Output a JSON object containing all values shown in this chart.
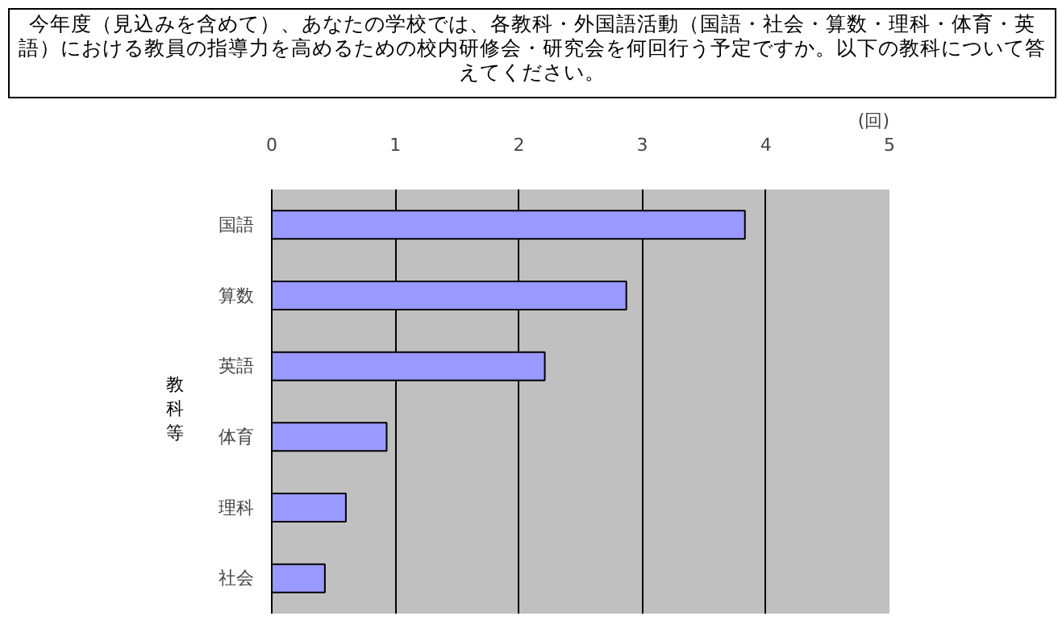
{
  "chart_data": {
    "type": "bar",
    "orientation": "horizontal",
    "title": "今年度（見込みを含めて）、あなたの学校では、各教科・外国語活動（国語・社会・算数・理科・体育・英語）における教員の指導力を高めるための校内研修会・研究会を何回行う予定ですか。以下の教科について答えてください。",
    "xlabel": "(回)",
    "ylabel": "教科等",
    "categories": [
      "国語",
      "算数",
      "英語",
      "体育",
      "理科",
      "社会"
    ],
    "values": [
      3.83,
      2.87,
      2.21,
      0.93,
      0.6,
      0.43
    ],
    "color": "#9999ff",
    "xlim": [
      0,
      5
    ],
    "xticks": [
      0,
      1,
      2,
      3,
      4,
      5
    ],
    "grid": "x",
    "legend": false
  }
}
